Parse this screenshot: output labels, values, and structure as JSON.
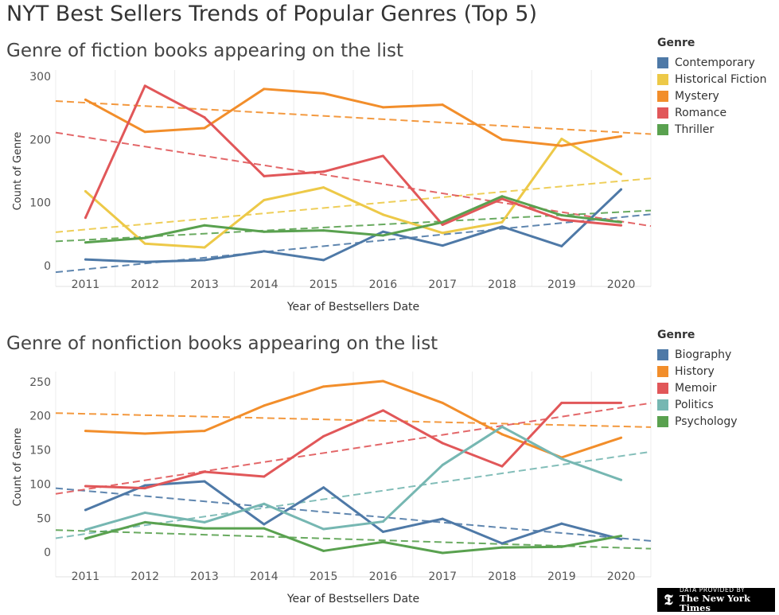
{
  "title": "NYT Best Sellers Trends of Popular Genres (Top 5)",
  "badge": {
    "line1": "DATA PROVIDED BY",
    "line2": "The New York Times"
  },
  "chart_data": [
    {
      "type": "line",
      "title": "Genre of fiction books appearing on the list",
      "xlabel": "Year of Bestsellers Date",
      "ylabel": "Count of Genre",
      "x": [
        2011,
        2012,
        2013,
        2014,
        2015,
        2016,
        2017,
        2018,
        2019,
        2020
      ],
      "ylim": [
        -10,
        310
      ],
      "yticks": [
        0,
        100,
        200,
        300
      ],
      "legend_title": "Genre",
      "legend_position": "right",
      "trend_lines": "dashed linear",
      "series": [
        {
          "name": "Contemporary",
          "color": "#4e79a7",
          "values": [
            10,
            6,
            9,
            23,
            9,
            54,
            32,
            62,
            31,
            121
          ]
        },
        {
          "name": "Historical Fiction",
          "color": "#edc948",
          "values": [
            118,
            35,
            29,
            104,
            124,
            81,
            52,
            69,
            201,
            145
          ]
        },
        {
          "name": "Mystery",
          "color": "#f28e2b",
          "values": [
            263,
            212,
            218,
            280,
            273,
            251,
            255,
            200,
            190,
            205
          ]
        },
        {
          "name": "Romance",
          "color": "#e15759",
          "values": [
            76,
            285,
            235,
            142,
            149,
            174,
            65,
            106,
            73,
            64
          ]
        },
        {
          "name": "Thriller",
          "color": "#59a14f",
          "values": [
            37,
            44,
            64,
            54,
            56,
            48,
            69,
            110,
            80,
            69
          ]
        }
      ]
    },
    {
      "type": "line",
      "title": "Genre of nonfiction books appearing on the list",
      "xlabel": "Year of Bestsellers Date",
      "ylabel": "Count of Genre",
      "x": [
        2011,
        2012,
        2013,
        2014,
        2015,
        2016,
        2017,
        2018,
        2019,
        2020
      ],
      "ylim": [
        -15,
        265
      ],
      "yticks": [
        0,
        50,
        100,
        150,
        200,
        250
      ],
      "legend_title": "Genre",
      "legend_position": "right",
      "trend_lines": "dashed linear",
      "series": [
        {
          "name": "Biography",
          "color": "#4e79a7",
          "values": [
            62,
            98,
            104,
            41,
            95,
            30,
            49,
            13,
            42,
            19
          ]
        },
        {
          "name": "History",
          "color": "#f28e2b",
          "values": [
            178,
            174,
            178,
            215,
            243,
            251,
            219,
            173,
            139,
            168
          ]
        },
        {
          "name": "Memoir",
          "color": "#e15759",
          "values": [
            97,
            94,
            118,
            111,
            170,
            208,
            160,
            126,
            219,
            219
          ]
        },
        {
          "name": "Politics",
          "color": "#76b7b2",
          "values": [
            33,
            58,
            44,
            71,
            34,
            45,
            128,
            184,
            137,
            106
          ]
        },
        {
          "name": "Psychology",
          "color": "#59a14f",
          "values": [
            20,
            44,
            35,
            35,
            2,
            15,
            -1,
            7,
            8,
            24
          ]
        }
      ]
    }
  ]
}
